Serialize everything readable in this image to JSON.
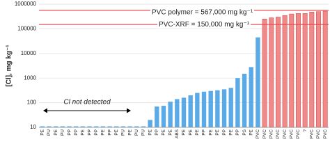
{
  "chart_data": {
    "type": "bar",
    "y_label": "[Cl], mg kg⁻¹",
    "log_scale": true,
    "grid": true,
    "categories": [
      "PE",
      "PU",
      "PE",
      "PU",
      "PP",
      "PP",
      "PE",
      "PP",
      "PP",
      "PE",
      "PP",
      "PE",
      "PU",
      "PE",
      "PU",
      "PU",
      "PE",
      "PP",
      "PE",
      "PE",
      "ABS",
      "PE",
      "PE",
      "PE",
      "PP",
      "PE",
      "PE",
      "PP",
      "PE",
      "PP",
      "PS",
      "PE",
      "PVC",
      "PVC",
      "PVC",
      "PVC",
      "PVC",
      "PVC",
      "PVC",
      "?",
      "PVC",
      "PVC",
      "PVC"
    ],
    "values": [
      11,
      11,
      11,
      11,
      11,
      11,
      11,
      11,
      11,
      11,
      11,
      11,
      11,
      11,
      11,
      11,
      20,
      70,
      75,
      110,
      140,
      160,
      200,
      250,
      280,
      300,
      320,
      350,
      400,
      1000,
      1500,
      2800,
      45000,
      250000,
      280000,
      300000,
      350000,
      400000,
      420000,
      420000,
      480000,
      500000,
      520000
    ],
    "colors": [
      "#5aaae8",
      "#5aaae8",
      "#5aaae8",
      "#5aaae8",
      "#5aaae8",
      "#5aaae8",
      "#5aaae8",
      "#5aaae8",
      "#5aaae8",
      "#5aaae8",
      "#5aaae8",
      "#5aaae8",
      "#5aaae8",
      "#5aaae8",
      "#5aaae8",
      "#5aaae8",
      "#5aaae8",
      "#5aaae8",
      "#5aaae8",
      "#5aaae8",
      "#5aaae8",
      "#5aaae8",
      "#5aaae8",
      "#5aaae8",
      "#5aaae8",
      "#5aaae8",
      "#5aaae8",
      "#5aaae8",
      "#5aaae8",
      "#5aaae8",
      "#5aaae8",
      "#5aaae8",
      "#5aaae8",
      "#f08a8a",
      "#f08a8a",
      "#f08a8a",
      "#f08a8a",
      "#f08a8a",
      "#f08a8a",
      "#f08a8a",
      "#f08a8a",
      "#f08a8a",
      "#f08a8a"
    ],
    "ylim": [
      10,
      1000000
    ],
    "yticks": [
      10,
      100,
      1000,
      10000,
      100000,
      1000000
    ],
    "reference_lines": [
      {
        "label": "PVC polymer = 567,000 mg kg⁻¹",
        "value": 567000,
        "color": "#e05050"
      },
      {
        "label": "PVC-XRF = 150,000 mg kg⁻¹",
        "value": 150000,
        "color": "#e05050"
      }
    ],
    "annotation": "Cl not detected"
  }
}
